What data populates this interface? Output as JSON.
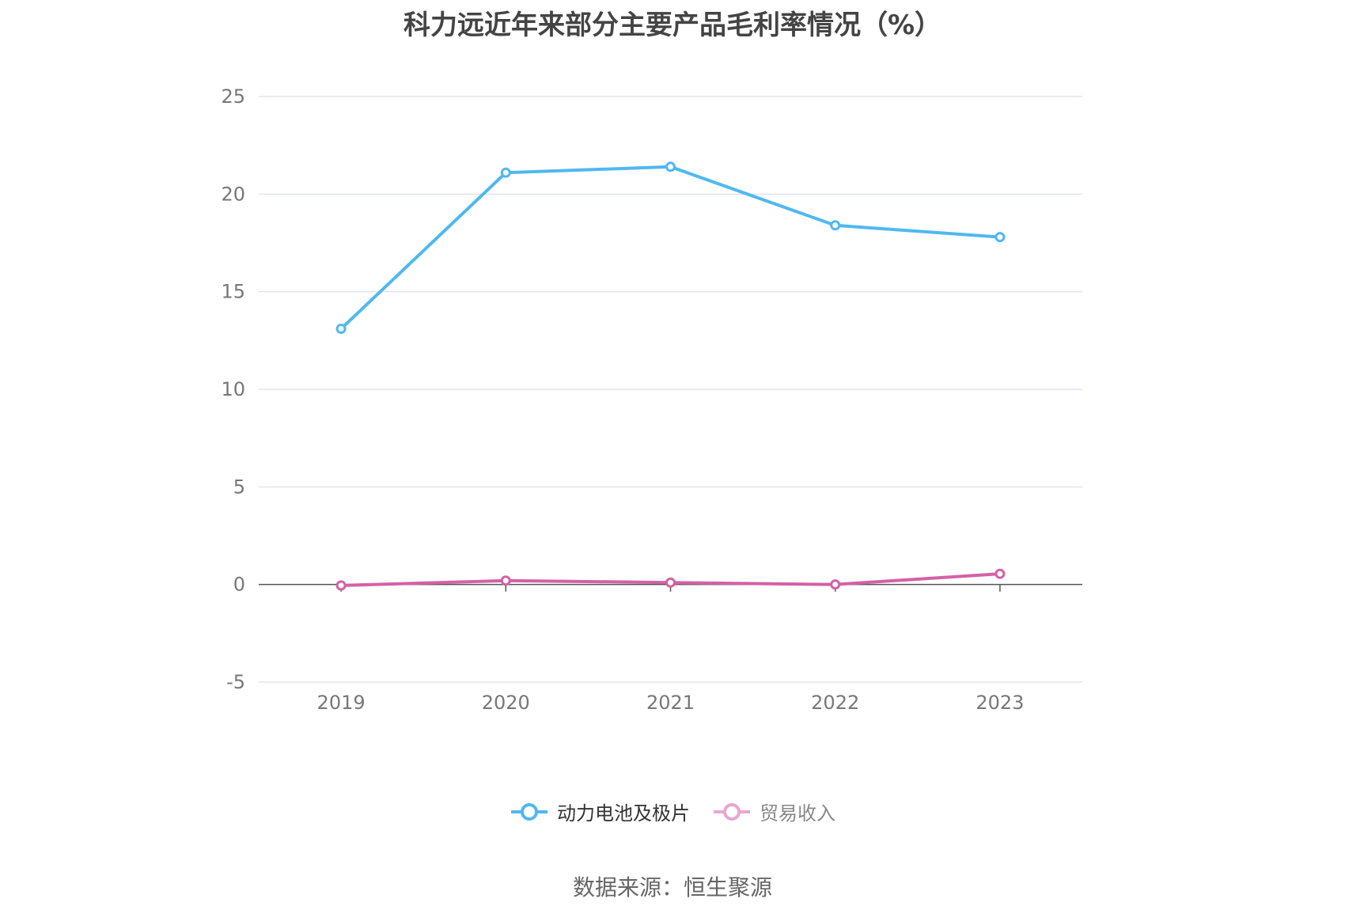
{
  "title": "科力远近年来部分主要产品毛利率情况（%）",
  "source": "数据来源：恒生聚源",
  "chart_data": {
    "type": "line",
    "title": "科力远近年来部分主要产品毛利率情况（%）",
    "categories": [
      "2019",
      "2020",
      "2021",
      "2022",
      "2023"
    ],
    "series": [
      {
        "name": "动力电池及极片",
        "values": [
          13.1,
          21.1,
          21.4,
          18.4,
          17.8
        ],
        "color": "#4fb8f0"
      },
      {
        "name": "贸易收入",
        "values": [
          -0.05,
          0.2,
          0.1,
          0.0,
          0.55
        ],
        "color": "#d461a6"
      }
    ],
    "ylim": [
      -5,
      25
    ],
    "yticks": [
      -5,
      0,
      5,
      10,
      15,
      20,
      25
    ],
    "grid": true,
    "legend": "bottom"
  }
}
